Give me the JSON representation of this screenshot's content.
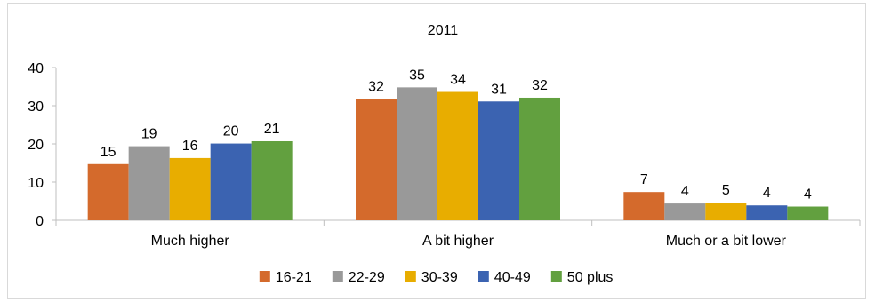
{
  "chart_data": {
    "type": "bar",
    "title": "2011",
    "xlabel": "",
    "ylabel": "",
    "categories": [
      "Much higher",
      "A bit higher",
      "Much or a bit lower"
    ],
    "series": [
      {
        "name": "16-21",
        "color": "#d46a2c",
        "values": [
          15,
          32,
          7
        ]
      },
      {
        "name": "22-29",
        "color": "#999999",
        "values": [
          19,
          35,
          4
        ]
      },
      {
        "name": "30-39",
        "color": "#e8ad00",
        "values": [
          16,
          34,
          5
        ]
      },
      {
        "name": "40-49",
        "color": "#3b63b1",
        "values": [
          20,
          31,
          4
        ]
      },
      {
        "name": "50 plus",
        "color": "#62a03f",
        "values": [
          21,
          32,
          4
        ]
      }
    ],
    "plot_values": [
      [
        14.7,
        31.7,
        7.4
      ],
      [
        19.4,
        34.8,
        4.4
      ],
      [
        16.3,
        33.6,
        4.6
      ],
      [
        20.1,
        31.1,
        3.9
      ],
      [
        20.7,
        32.1,
        3.6
      ]
    ],
    "ylim": [
      0,
      40
    ],
    "yticks": [
      "0",
      "10",
      "20",
      "30",
      "40"
    ],
    "grid": false,
    "legend_position": "bottom"
  }
}
